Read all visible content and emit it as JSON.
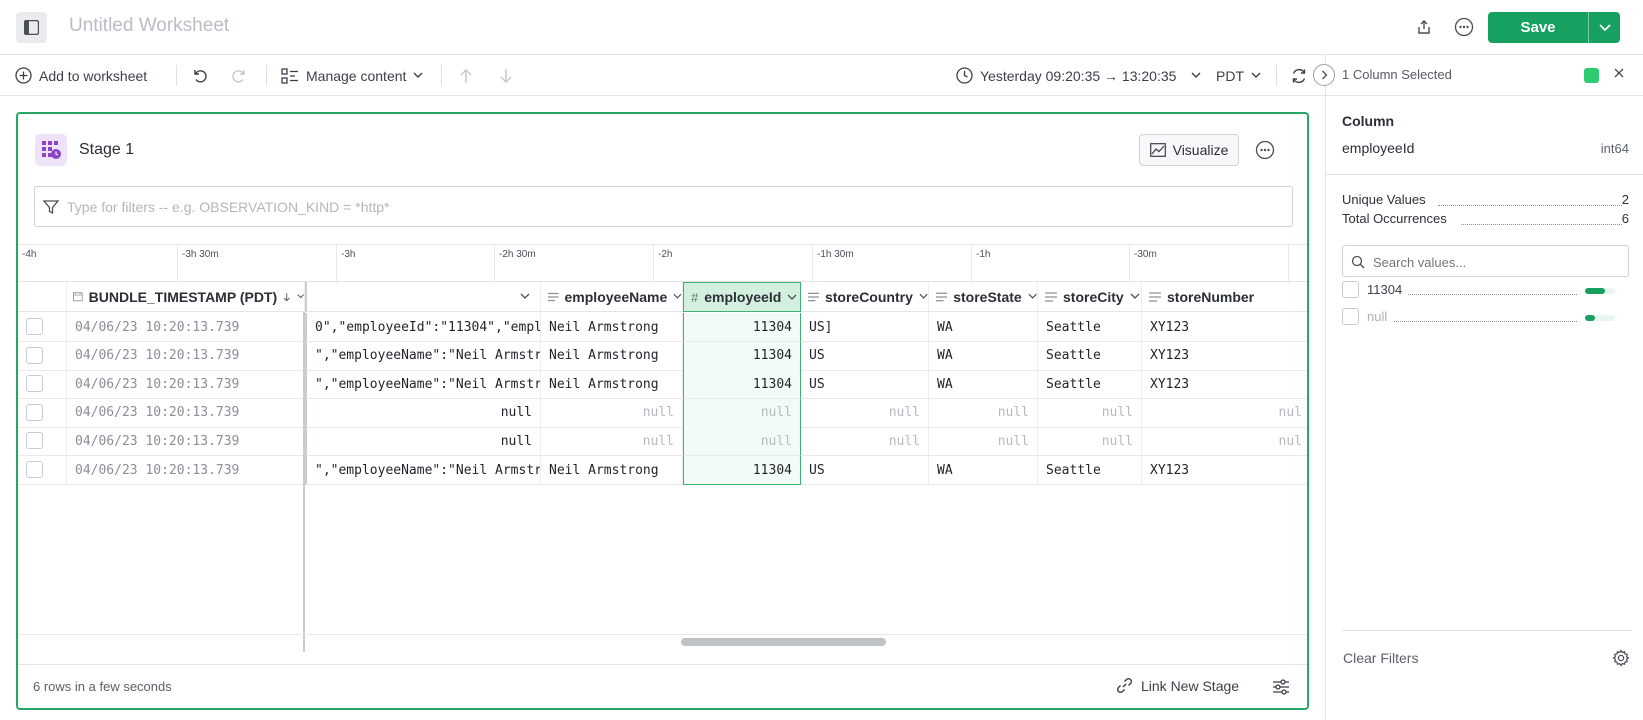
{
  "header": {
    "title": "Untitled Worksheet",
    "save_label": "Save"
  },
  "toolbar": {
    "add_to_worksheet": "Add to worksheet",
    "manage_content": "Manage content",
    "time_range": "Yesterday 09:20:35 → 13:20:35",
    "timezone": "PDT"
  },
  "right_panel": {
    "selected_text": "1 Column Selected",
    "column_heading": "Column",
    "column_name": "employeeId",
    "column_type": "int64",
    "unique_values_label": "Unique Values",
    "unique_values": "2",
    "total_occurrences_label": "Total Occurrences",
    "total_occurrences": "6",
    "search_placeholder": "Search values...",
    "values": [
      {
        "label": "11304",
        "fraction": 0.67
      },
      {
        "label": "null",
        "fraction": 0.33
      }
    ],
    "clear_filters": "Clear Filters",
    "accent_color": "#2ecc71"
  },
  "stage": {
    "title": "Stage 1",
    "visualize_label": "Visualize",
    "filter_placeholder": "Type for filters -- e.g. OBSERVATION_KIND = *http*",
    "timeline_ticks": [
      "-4h",
      "-3h 30m",
      "-3h",
      "-2h 30m",
      "-2h",
      "-1h 30m",
      "-1h",
      "-30m"
    ],
    "columns": {
      "timestamp": "BUNDLE_TIMESTAMP (PDT)",
      "employeeName": "employeeName",
      "employeeId": "employeeId",
      "storeCountry": "storeCountry",
      "storeState": "storeState",
      "storeCity": "storeCity",
      "storeNumber": "storeNumber"
    },
    "rows": [
      {
        "ts": "04/06/23 10:20:13.739",
        "json": "0\",\"employeeId\":\"11304\",\"empl...",
        "name": "Neil Armstrong",
        "id": "11304",
        "country": "US]",
        "state": "WA",
        "city": "Seattle",
        "number": "XY123"
      },
      {
        "ts": "04/06/23 10:20:13.739",
        "json": "\",\"employeeName\":\"Neil Armstr...",
        "name": "Neil Armstrong",
        "id": "11304",
        "country": "US",
        "state": "WA",
        "city": "Seattle",
        "number": "XY123"
      },
      {
        "ts": "04/06/23 10:20:13.739",
        "json": "\",\"employeeName\":\"Neil Armstr...",
        "name": "Neil Armstrong",
        "id": "11304",
        "country": "US",
        "state": "WA",
        "city": "Seattle",
        "number": "XY123"
      },
      {
        "ts": "04/06/23 10:20:13.739",
        "json": "null",
        "name": "null",
        "id": "null",
        "country": "null",
        "state": "null",
        "city": "null",
        "number": "nul"
      },
      {
        "ts": "04/06/23 10:20:13.739",
        "json": "null",
        "name": "null",
        "id": "null",
        "country": "null",
        "state": "null",
        "city": "null",
        "number": "nul"
      },
      {
        "ts": "04/06/23 10:20:13.739",
        "json": "\",\"employeeName\":\"Neil Armstr...",
        "name": "Neil Armstrong",
        "id": "11304",
        "country": "US",
        "state": "WA",
        "city": "Seattle",
        "number": "XY123"
      }
    ],
    "row_count": "6 rows in a few seconds",
    "link_new_stage": "Link New Stage"
  }
}
